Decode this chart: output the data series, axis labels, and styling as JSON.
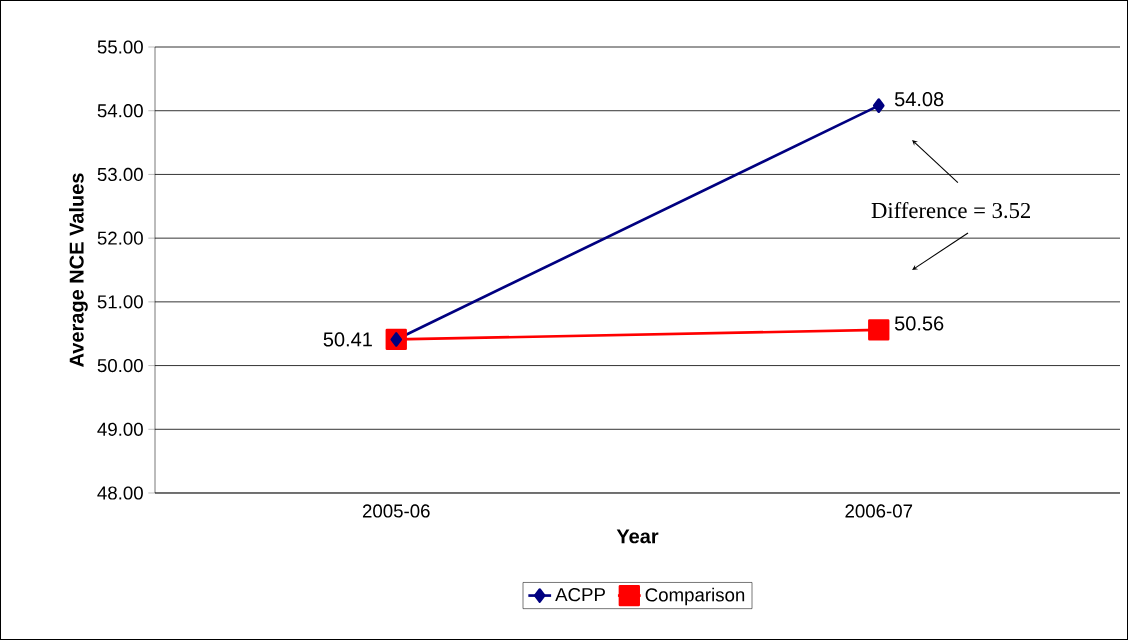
{
  "chart_data": {
    "type": "line",
    "xlabel": "Year",
    "ylabel": "Average NCE Values",
    "categories": [
      "2005-06",
      "2006-07"
    ],
    "series": [
      {
        "name": "ACPP",
        "color": "#000080",
        "marker": "diamond",
        "values": [
          50.41,
          54.08
        ],
        "value_labels": [
          null,
          "54.08"
        ]
      },
      {
        "name": "Comparison",
        "color": "#ff0000",
        "marker": "square",
        "values": [
          50.41,
          50.56
        ],
        "value_labels": [
          "50.41",
          "50.56"
        ]
      }
    ],
    "ylim": [
      48,
      55
    ],
    "yticks": [
      {
        "value": 48,
        "label": "48.00"
      },
      {
        "value": 49,
        "label": "49.00"
      },
      {
        "value": 50,
        "label": "50.00"
      },
      {
        "value": 51,
        "label": "51.00"
      },
      {
        "value": 52,
        "label": "52.00"
      },
      {
        "value": 53,
        "label": "53.00"
      },
      {
        "value": 54,
        "label": "54.00"
      },
      {
        "value": 55,
        "label": "55.00"
      }
    ],
    "grid": "y",
    "legend": "bottom",
    "line_style": "solid",
    "annotations": [
      "Difference = 3.52"
    ]
  }
}
